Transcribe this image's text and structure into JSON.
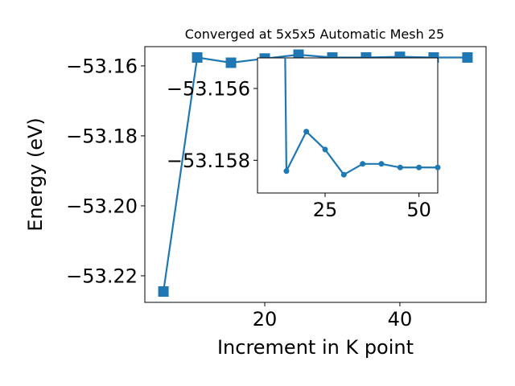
{
  "chart_data": [
    {
      "type": "line",
      "title": "Converged at 5x5x5 Automatic Mesh 25",
      "xlabel": "Increment in K point",
      "ylabel": "Energy (eV)",
      "xlim": [
        2.25,
        52.75
      ],
      "ylim": [
        -53.2276,
        -53.1545
      ],
      "x_ticks": [
        20,
        40
      ],
      "x_tick_labels": [
        "20",
        "40"
      ],
      "y_ticks": [
        -53.16,
        -53.18,
        -53.2,
        -53.22
      ],
      "y_tick_labels": [
        "−53.16",
        "−53.18",
        "−53.20",
        "−53.22"
      ],
      "marker": "square",
      "color": "#1f77b4",
      "grid": false,
      "series": [
        {
          "x": [
            5,
            10,
            15,
            20,
            25,
            30,
            35,
            40,
            45,
            50
          ],
          "y": [
            -53.2245,
            -53.1576,
            -53.1591,
            -53.1579,
            -53.1568,
            -53.1576,
            -53.1576,
            -53.1574,
            -53.1576,
            -53.1576
          ]
        }
      ]
    },
    {
      "type": "line",
      "role": "inset",
      "xlim": [
        7,
        55
      ],
      "ylim": [
        -53.15891,
        -53.15515
      ],
      "x_ticks": [
        25,
        50
      ],
      "x_tick_labels": [
        "25",
        "50"
      ],
      "y_ticks": [
        -53.158,
        -53.156
      ],
      "y_tick_labels": [
        "−53.158",
        "−53.156"
      ],
      "marker": "circle",
      "color": "#1f77b4",
      "grid": false,
      "series": [
        {
          "x": [
            14.3,
            14.7,
            20,
            25,
            30,
            35,
            40,
            45,
            50,
            55
          ],
          "y": [
            -53.1545,
            -53.1583,
            -53.1572,
            -53.1577,
            -53.1584,
            -53.1581,
            -53.1581,
            -53.1582,
            -53.1582,
            -53.1582
          ]
        }
      ]
    }
  ]
}
